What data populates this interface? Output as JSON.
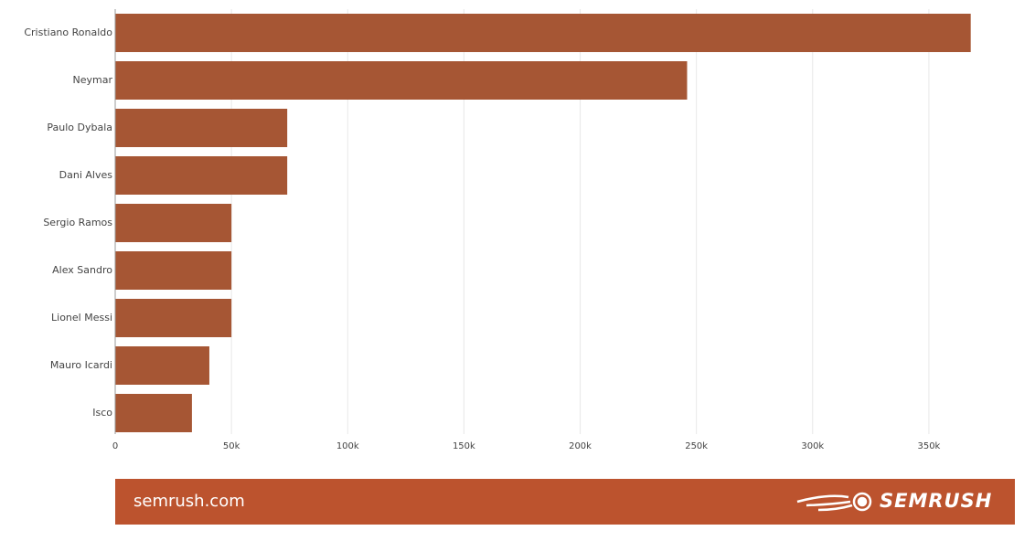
{
  "chart_data": {
    "type": "hbar",
    "categories": [
      "Cristiano Ronaldo",
      "Neymar",
      "Paulo Dybala",
      "Dani Alves",
      "Sergio Ramos",
      "Alex Sandro",
      "Lionel Messi",
      "Mauro Icardi",
      "Isco"
    ],
    "values": [
      368000,
      246000,
      74000,
      74000,
      50000,
      50000,
      50000,
      40500,
      33000
    ],
    "color": "#a65634",
    "xlim": [
      0,
      387000
    ],
    "xticks": [
      0,
      {
        "value": 50000,
        "label": "50k"
      },
      {
        "value": 100000,
        "label": "100k"
      },
      {
        "value": 150000,
        "label": "150k"
      },
      {
        "value": 200000,
        "label": "200k"
      },
      {
        "value": 250000,
        "label": "250k"
      },
      {
        "value": 300000,
        "label": "300k"
      },
      {
        "value": 350000,
        "label": "350k"
      }
    ],
    "grid": true
  },
  "footer": {
    "site": "semrush.com",
    "brand": "SEMRUSH"
  }
}
